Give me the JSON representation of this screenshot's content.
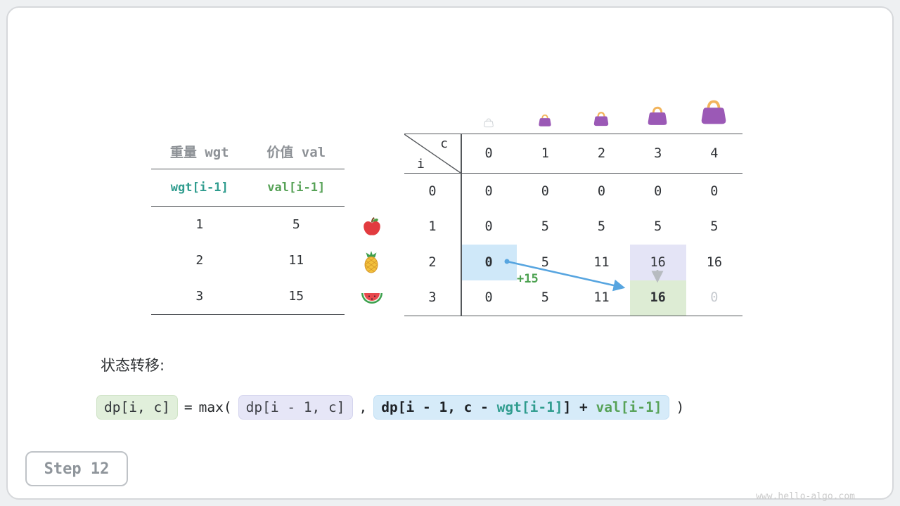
{
  "page": {
    "step_label": "Step 12",
    "watermark": "www.hello-algo.com"
  },
  "items_table": {
    "col_headers": [
      "重量 wgt",
      "价值 val"
    ],
    "formula_row": {
      "wgt": "wgt[i-1]",
      "val": "val[i-1]"
    },
    "rows": [
      {
        "wgt": "1",
        "val": "5",
        "icon": "apple-icon"
      },
      {
        "wgt": "2",
        "val": "11",
        "icon": "pineapple-icon"
      },
      {
        "wgt": "3",
        "val": "15",
        "icon": "watermelon-icon"
      }
    ]
  },
  "dp_table": {
    "corner": {
      "row_label": "i",
      "col_label": "c"
    },
    "col_headers": [
      "0",
      "1",
      "2",
      "3",
      "4"
    ],
    "row_headers": [
      "0",
      "1",
      "2",
      "3"
    ],
    "rows": [
      [
        "0",
        "0",
        "0",
        "0",
        "0"
      ],
      [
        "0",
        "5",
        "5",
        "5",
        "5"
      ],
      [
        "0",
        "5",
        "11",
        "16",
        "16"
      ],
      [
        "0",
        "5",
        "11",
        "16",
        "0"
      ]
    ],
    "highlights": [
      {
        "row": 2,
        "col": 0,
        "style": "blue"
      },
      {
        "row": 2,
        "col": 3,
        "style": "lavender"
      },
      {
        "row": 3,
        "col": 3,
        "style": "green"
      },
      {
        "row": 3,
        "col": 4,
        "style": "dimmed"
      }
    ],
    "annotation": "+15",
    "bag_icons": [
      "bag-icon-capacity-0",
      "bag-icon-capacity-1",
      "bag-icon-capacity-2",
      "bag-icon-capacity-3",
      "bag-icon-capacity-4"
    ]
  },
  "transition": {
    "label": "状态转移:",
    "lhs": "dp[i, c]",
    "equals": "=",
    "max_open": "max(",
    "arg1": "dp[i - 1, c]",
    "comma": ",",
    "arg2_part1": "dp[i - 1, c - ",
    "arg2_wgt": "wgt[i-1]",
    "arg2_part2": "] + ",
    "arg2_val": "val[i-1]",
    "close": ")"
  },
  "colors": {
    "teal": "#2f9c8e",
    "green": "#57a257",
    "arrow_blue": "#57a5e0",
    "arrow_gray": "#b7bbc0",
    "cell_blue": "#cfe8f9",
    "cell_lavender": "#e4e4f6",
    "cell_green": "#ddecd4",
    "chip_green": "#e1efdb",
    "chip_lavender": "#e6e6f7",
    "chip_blue": "#d6ebf9"
  }
}
